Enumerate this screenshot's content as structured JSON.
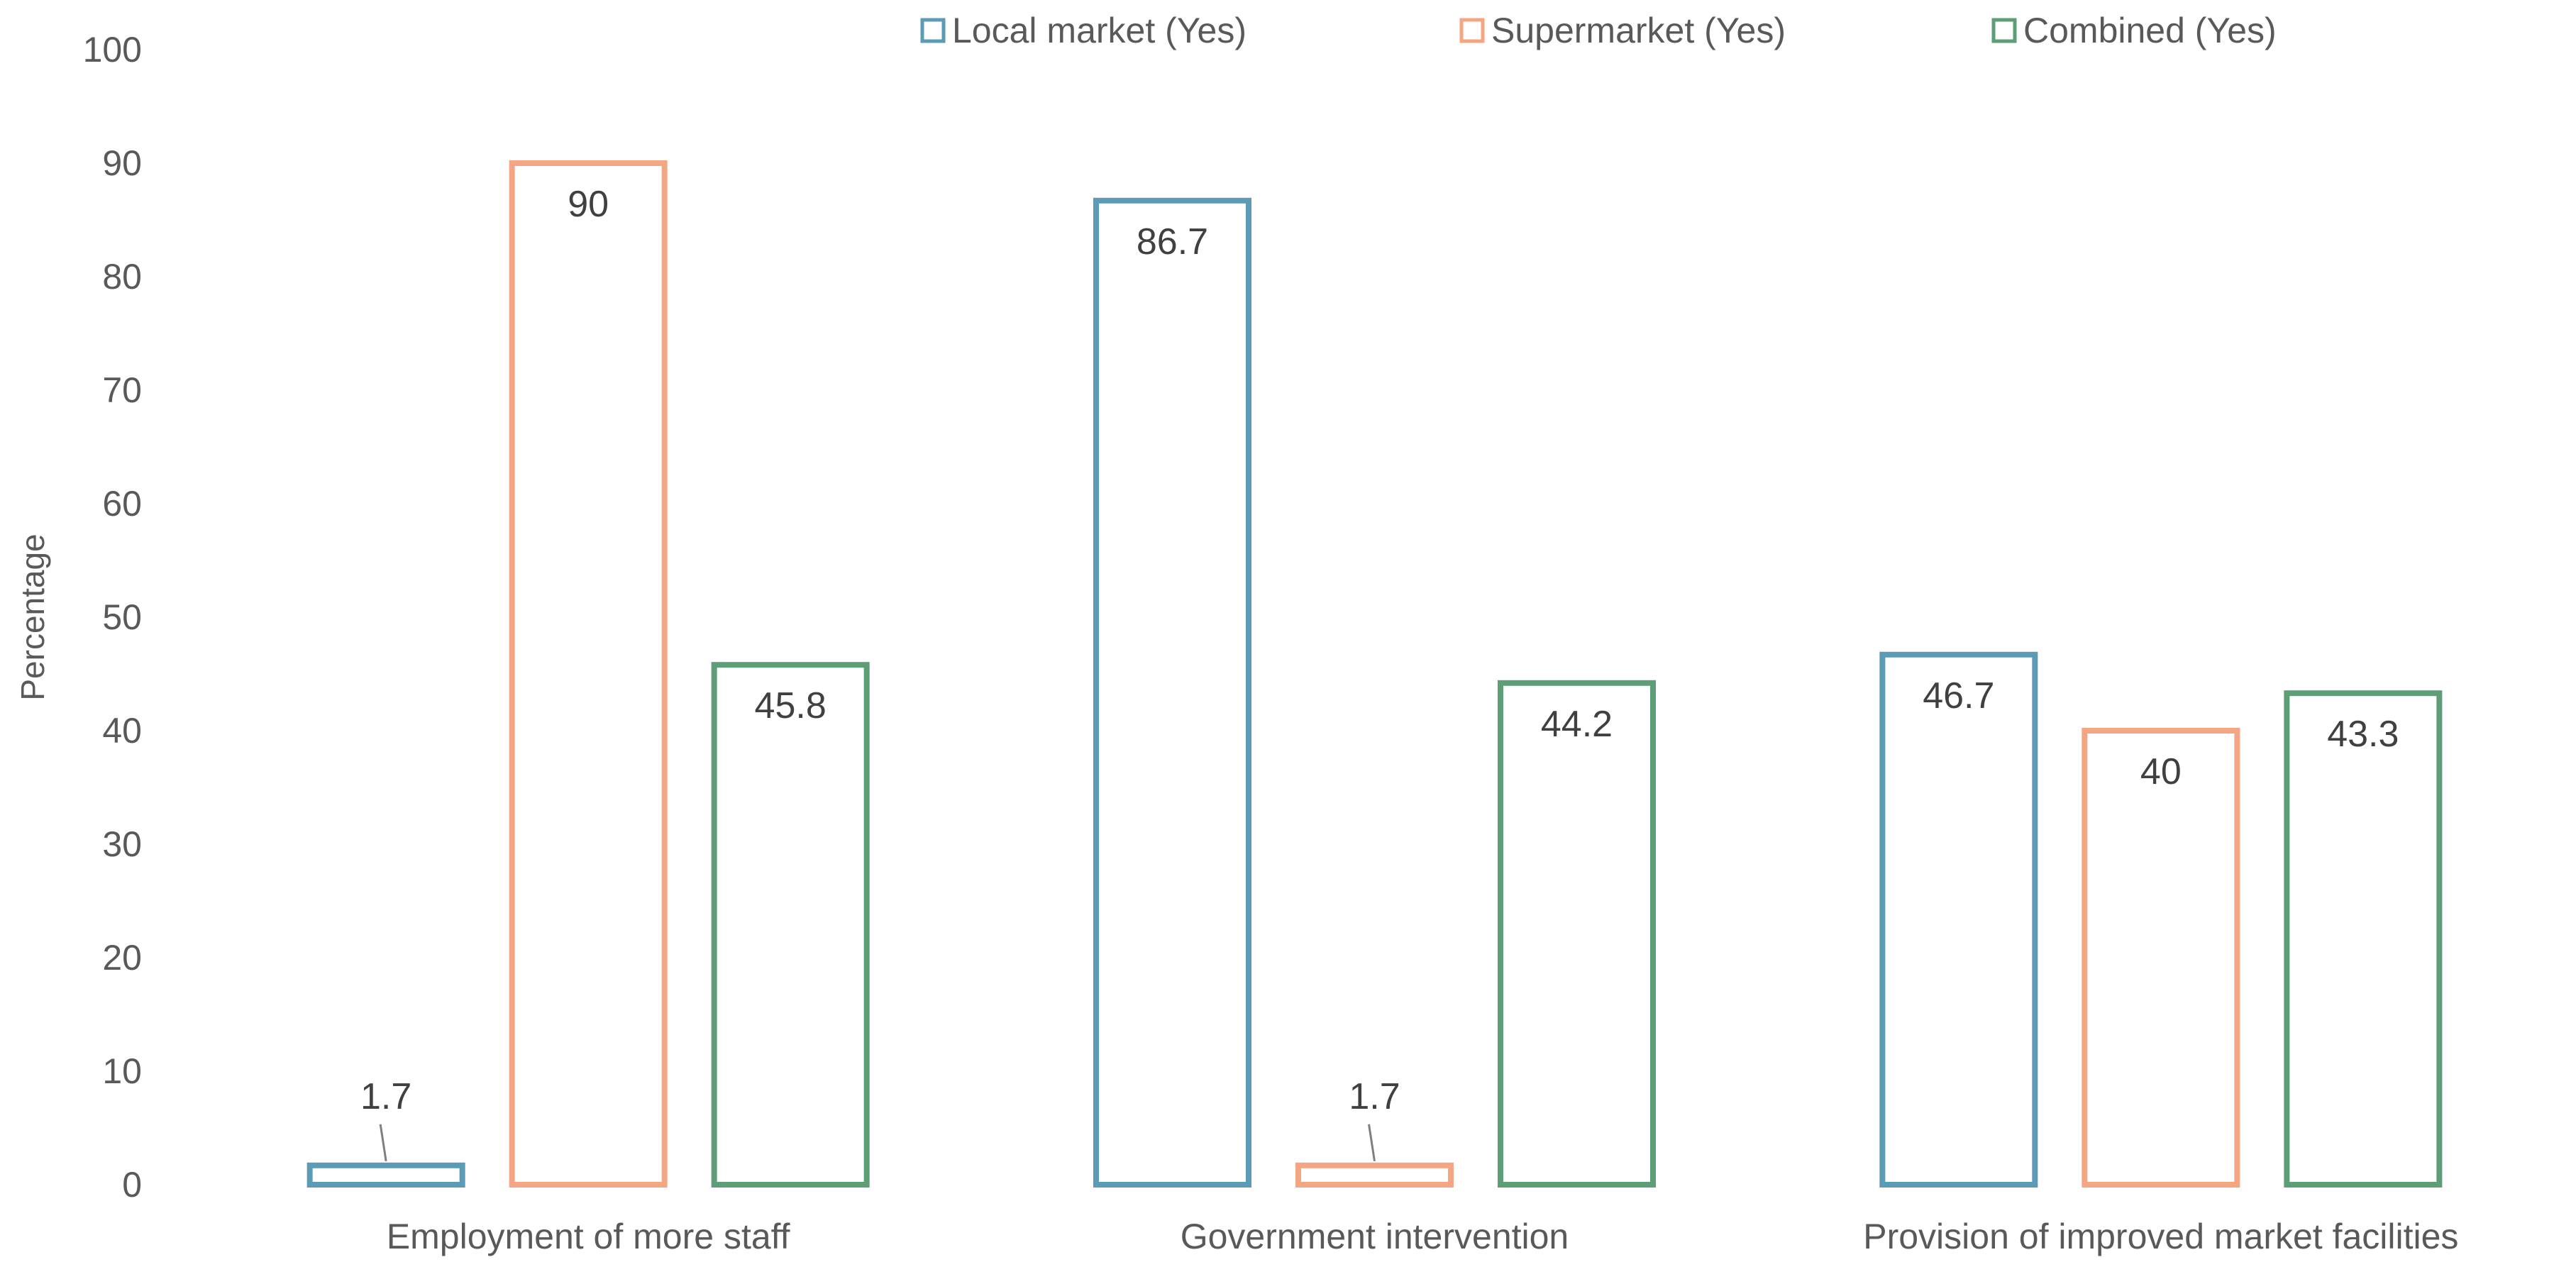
{
  "chart_data": {
    "type": "bar",
    "categories": [
      "Employment of more staff",
      "Government intervention",
      "Provision of improved market facilities"
    ],
    "series": [
      {
        "name": "Local market (Yes)",
        "color": "#5b9bb5",
        "values": [
          1.7,
          86.7,
          46.7
        ]
      },
      {
        "name": "Supermarket (Yes)",
        "color": "#f4a582",
        "values": [
          90,
          1.7,
          40
        ]
      },
      {
        "name": "Combined (Yes)",
        "color": "#5e9e76",
        "values": [
          45.8,
          44.2,
          43.3
        ]
      }
    ],
    "title": "",
    "xlabel": "",
    "ylabel": "Percentage",
    "ylim": [
      0,
      100
    ],
    "yticks": [
      0,
      10,
      20,
      30,
      40,
      50,
      60,
      70,
      80,
      90,
      100
    ],
    "grid": false,
    "legend_position": "top-right",
    "bar_style": "outline"
  }
}
